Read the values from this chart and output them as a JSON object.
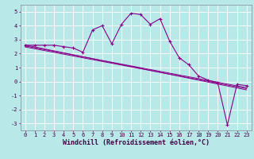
{
  "xlabel": "Windchill (Refroidissement éolien,°C)",
  "bg_color": "#b8e8e8",
  "line_color": "#880088",
  "grid_color": "#ffffff",
  "xlim": [
    -0.5,
    23.5
  ],
  "ylim": [
    -3.5,
    5.5
  ],
  "yticks": [
    -3,
    -2,
    -1,
    0,
    1,
    2,
    3,
    4,
    5
  ],
  "xticks": [
    0,
    1,
    2,
    3,
    4,
    5,
    6,
    7,
    8,
    9,
    10,
    11,
    12,
    13,
    14,
    15,
    16,
    17,
    18,
    19,
    20,
    21,
    22,
    23
  ],
  "main_series": [
    2.6,
    2.6,
    2.6,
    2.6,
    2.5,
    2.4,
    2.1,
    3.7,
    4.0,
    2.7,
    4.1,
    4.9,
    4.8,
    4.1,
    4.5,
    2.9,
    1.7,
    1.2,
    0.4,
    0.1,
    -0.1,
    -3.1,
    -0.2,
    -0.3
  ],
  "reg_lines": [
    [
      2.55,
      2.42,
      2.29,
      2.16,
      2.03,
      1.9,
      1.77,
      1.64,
      1.51,
      1.38,
      1.25,
      1.12,
      0.99,
      0.86,
      0.73,
      0.6,
      0.47,
      0.34,
      0.21,
      0.08,
      -0.05,
      -0.18,
      -0.31,
      -0.44
    ],
    [
      2.62,
      2.48,
      2.34,
      2.2,
      2.06,
      1.92,
      1.78,
      1.64,
      1.5,
      1.36,
      1.22,
      1.08,
      0.94,
      0.8,
      0.66,
      0.52,
      0.38,
      0.24,
      0.1,
      -0.04,
      -0.18,
      -0.32,
      -0.46,
      -0.6
    ],
    [
      2.48,
      2.35,
      2.22,
      2.09,
      1.96,
      1.83,
      1.7,
      1.57,
      1.44,
      1.31,
      1.18,
      1.05,
      0.92,
      0.79,
      0.66,
      0.53,
      0.4,
      0.27,
      0.14,
      0.01,
      -0.12,
      -0.25,
      -0.38,
      -0.51
    ]
  ],
  "marker": "+",
  "markersize": 3,
  "markeredgewidth": 0.8,
  "linewidth": 0.8,
  "reg_linewidth": 0.7,
  "xlabel_fontsize": 6,
  "tick_fontsize": 5
}
